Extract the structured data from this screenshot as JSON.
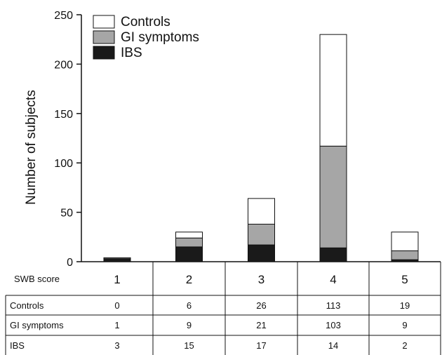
{
  "chart_data": {
    "type": "bar",
    "stacked": true,
    "categories": [
      "1",
      "2",
      "3",
      "4",
      "5"
    ],
    "series": [
      {
        "name": "IBS",
        "values": [
          3,
          15,
          17,
          14,
          2
        ],
        "color": "#1a1a1a"
      },
      {
        "name": "GI symptoms",
        "values": [
          1,
          9,
          21,
          103,
          9
        ],
        "color": "#a6a6a6"
      },
      {
        "name": "Controls",
        "values": [
          0,
          6,
          26,
          113,
          19
        ],
        "color": "#ffffff"
      }
    ],
    "legend_order": [
      "Controls",
      "GI symptoms",
      "IBS"
    ],
    "legend_position": "top-left",
    "ylabel": "Number of subjects",
    "ylim": [
      0,
      250
    ],
    "yticks": [
      0,
      50,
      100,
      150,
      200,
      250
    ],
    "grid": false
  },
  "table": {
    "header_label": "SWB score",
    "rows": [
      {
        "label": "Controls",
        "values": [
          "0",
          "6",
          "26",
          "113",
          "19"
        ]
      },
      {
        "label": "GI symptoms",
        "values": [
          "1",
          "9",
          "21",
          "103",
          "9"
        ]
      },
      {
        "label": "IBS",
        "values": [
          "3",
          "15",
          "17",
          "14",
          "2"
        ]
      }
    ]
  }
}
